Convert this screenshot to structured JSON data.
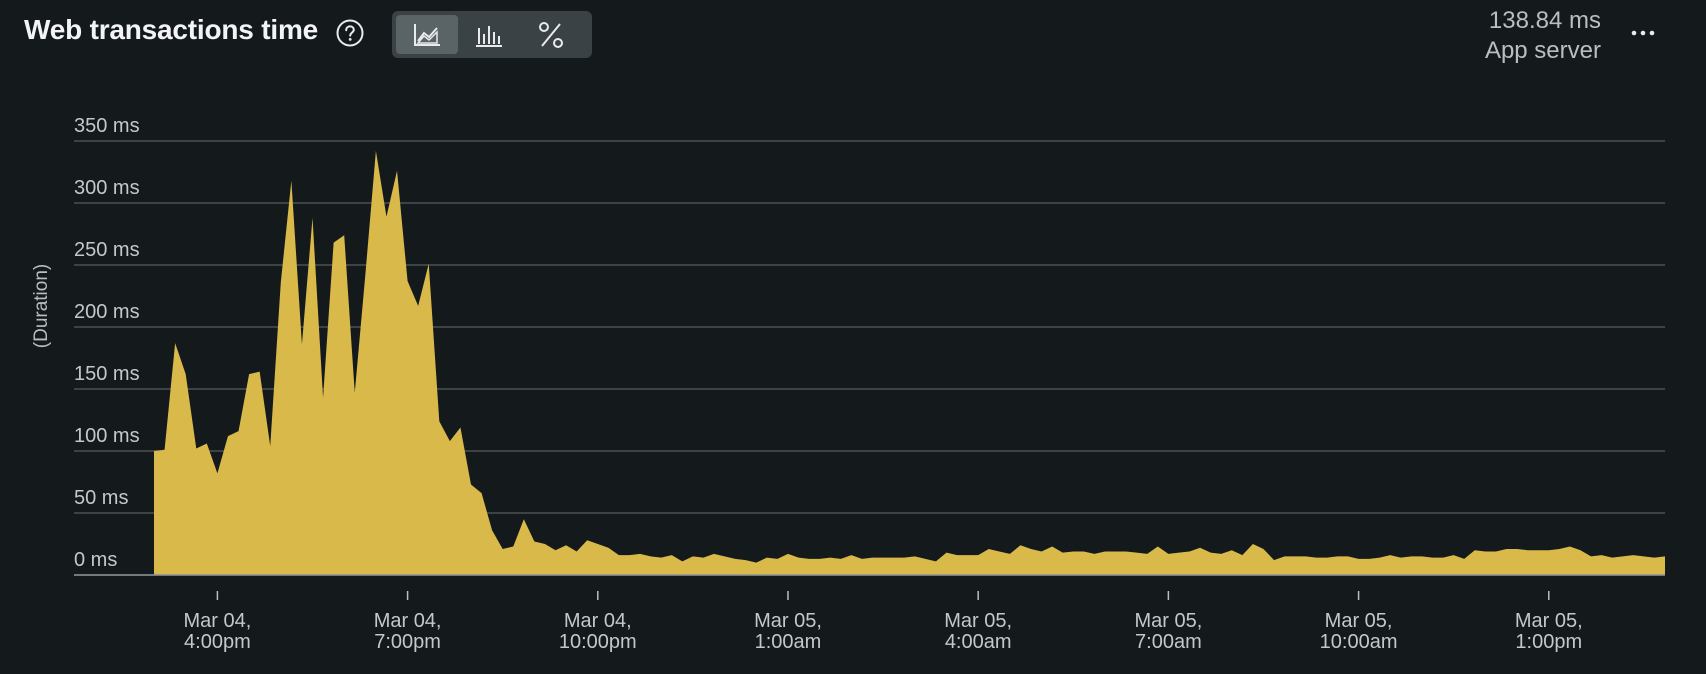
{
  "header": {
    "title": "Web transactions time",
    "help_icon": "question-circle-icon",
    "view_toggle": [
      {
        "name": "line-chart-icon",
        "active": true
      },
      {
        "name": "bar-histogram-icon",
        "active": false
      },
      {
        "name": "percent-icon",
        "active": false
      }
    ],
    "summary_value": "138.84 ms",
    "summary_label": "App server",
    "more_icon": "ellipsis-icon"
  },
  "colors": {
    "background": "#141a1c",
    "series_fill": "#d9b94a",
    "gridline": "#4a5053",
    "text": "#c3c8ca"
  },
  "chart_data": {
    "type": "area",
    "ylabel": "(Duration)",
    "ylim": [
      0,
      350
    ],
    "y_ticks": [
      0,
      50,
      100,
      150,
      200,
      250,
      300,
      350
    ],
    "y_tick_labels": [
      "0 ms",
      "50 ms",
      "100 ms",
      "150 ms",
      "200 ms",
      "250 ms",
      "300 ms",
      "350 ms"
    ],
    "grid": true,
    "x_ticks": [
      {
        "lines": [
          "Mar 04,",
          "4:00pm"
        ]
      },
      {
        "lines": [
          "Mar 04,",
          "7:00pm"
        ]
      },
      {
        "lines": [
          "Mar 04,",
          "10:00pm"
        ]
      },
      {
        "lines": [
          "Mar 05,",
          "1:00am"
        ]
      },
      {
        "lines": [
          "Mar 05,",
          "4:00am"
        ]
      },
      {
        "lines": [
          "Mar 05,",
          "7:00am"
        ]
      },
      {
        "lines": [
          "Mar 05,",
          "10:00am"
        ]
      },
      {
        "lines": [
          "Mar 05,",
          "1:00pm"
        ]
      }
    ],
    "x_tick_index": [
      6,
      24,
      42,
      60,
      78,
      96,
      114,
      132
    ],
    "series": [
      {
        "values": [
          100,
          101,
          187,
          162,
          102,
          106,
          82,
          112,
          116,
          162,
          164,
          104,
          236,
          318,
          186,
          288,
          143,
          268,
          274,
          147,
          242,
          342,
          289,
          326,
          237,
          217,
          251,
          124,
          108,
          119,
          73,
          66,
          36,
          21,
          23,
          45,
          27,
          25,
          20,
          24,
          19,
          28,
          25,
          22,
          16,
          16,
          17,
          15,
          14,
          16,
          11,
          15,
          14,
          17,
          15,
          13,
          12,
          10,
          14,
          13,
          17,
          14,
          13,
          13,
          14,
          13,
          16,
          13,
          14,
          14,
          14,
          14,
          15,
          13,
          11,
          18,
          16,
          16,
          16,
          21,
          19,
          17,
          24,
          21,
          19,
          23,
          18,
          19,
          19,
          17,
          19,
          19,
          19,
          18,
          17,
          23,
          17,
          18,
          19,
          22,
          18,
          17,
          20,
          16,
          25,
          21,
          12,
          15,
          15,
          15,
          14,
          14,
          15,
          15,
          13,
          13,
          14,
          16,
          14,
          15,
          15,
          14,
          14,
          16,
          13,
          20,
          19,
          19,
          21,
          21,
          20,
          20,
          20,
          21,
          23,
          20,
          15,
          16,
          14,
          15,
          16,
          15,
          14,
          15
        ]
      }
    ]
  }
}
